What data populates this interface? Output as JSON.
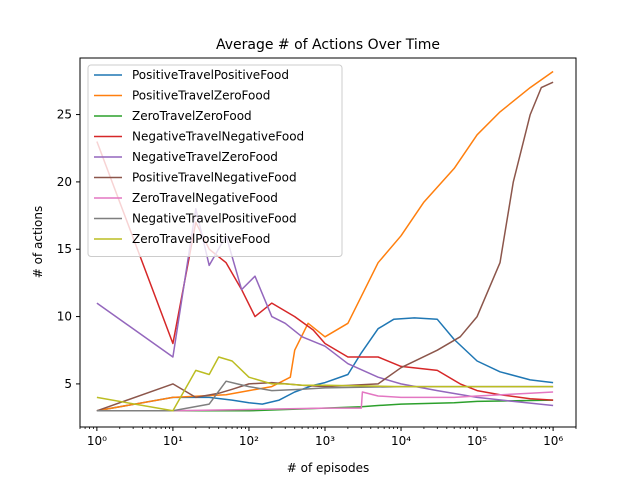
{
  "chart_data": {
    "type": "line",
    "title": "Average # of Actions Over Time",
    "xlabel": "# of episodes",
    "ylabel": "# of actions",
    "xscale": "log",
    "xlim": [
      0.6,
      2000000
    ],
    "ylim": [
      1.8,
      29.2
    ],
    "x_ticks": [
      1,
      10,
      100,
      1000,
      10000,
      100000,
      1000000
    ],
    "x_tick_labels": [
      "10⁰",
      "10¹",
      "10²",
      "10³",
      "10⁴",
      "10⁵",
      "10⁶"
    ],
    "y_ticks": [
      5,
      10,
      15,
      20,
      25
    ],
    "y_tick_labels": [
      "5",
      "10",
      "15",
      "20",
      "25"
    ],
    "grid": false,
    "legend_position": "upper-left",
    "series": [
      {
        "name": "PositiveTravelPositiveFood",
        "color": "#1f77b4",
        "x": [
          1,
          10,
          30,
          60,
          100,
          150,
          250,
          400,
          700,
          1000,
          2000,
          3000,
          5000,
          8000,
          15000,
          30000,
          50000,
          100000,
          200000,
          500000,
          1000000
        ],
        "y": [
          3,
          4,
          4,
          3.8,
          3.6,
          3.5,
          3.8,
          4.4,
          4.9,
          5.1,
          5.7,
          7.3,
          9.1,
          9.8,
          9.9,
          9.8,
          8.3,
          6.7,
          5.9,
          5.3,
          5.1
        ]
      },
      {
        "name": "PositiveTravelZeroFood",
        "color": "#ff7f0e",
        "x": [
          1,
          10,
          50,
          100,
          200,
          350,
          400,
          600,
          1000,
          2000,
          3000,
          5000,
          10000,
          20000,
          50000,
          100000,
          200000,
          500000,
          1000000
        ],
        "y": [
          3,
          4,
          4.2,
          4.5,
          4.8,
          5.5,
          7.5,
          9.5,
          8.5,
          9.5,
          11.5,
          14,
          16,
          18.5,
          21,
          23.5,
          25.2,
          27,
          28.2
        ]
      },
      {
        "name": "ZeroTravelZeroFood",
        "color": "#2ca02c",
        "x": [
          1,
          10,
          100,
          1000,
          3000,
          5000,
          10000,
          50000,
          100000,
          1000000
        ],
        "y": [
          3,
          3,
          3,
          3.2,
          3.3,
          3.4,
          3.5,
          3.6,
          3.7,
          3.8
        ]
      },
      {
        "name": "NegativeTravelNegativeFood",
        "color": "#d62728",
        "x": [
          1,
          10,
          20,
          30,
          50,
          80,
          120,
          200,
          400,
          700,
          1000,
          2000,
          5000,
          10000,
          30000,
          60000,
          100000,
          200000,
          500000,
          1000000
        ],
        "y": [
          23,
          8,
          17,
          15,
          14,
          12,
          10,
          11,
          10,
          9,
          8,
          7,
          7,
          6.3,
          6,
          5,
          4.5,
          4.2,
          3.9,
          3.8
        ]
      },
      {
        "name": "NegativeTravelZeroFood",
        "color": "#9467bd",
        "x": [
          1,
          10,
          20,
          30,
          50,
          80,
          120,
          200,
          300,
          500,
          1000,
          2000,
          5000,
          10000,
          30000,
          100000,
          300000,
          1000000
        ],
        "y": [
          11,
          7,
          18,
          13.8,
          16,
          12,
          13,
          10,
          9.5,
          8.5,
          7.8,
          6.5,
          5.5,
          5,
          4.5,
          4,
          3.7,
          3.4
        ]
      },
      {
        "name": "PositiveTravelNegativeFood",
        "color": "#8c564b",
        "x": [
          1,
          10,
          20,
          40,
          60,
          100,
          200,
          500,
          1000,
          5000,
          10000,
          30000,
          60000,
          100000,
          200000,
          300000,
          500000,
          700000,
          1000000
        ],
        "y": [
          3,
          5,
          4,
          4.3,
          4.6,
          5,
          5.1,
          4.9,
          4.8,
          5,
          6.2,
          7.5,
          8.5,
          10,
          14,
          20,
          25,
          27,
          27.4
        ]
      },
      {
        "name": "ZeroTravelNegativeFood",
        "color": "#e377c2",
        "x": [
          1,
          10,
          100,
          1000,
          3000,
          3100,
          5000,
          10000,
          50000,
          100000,
          500000,
          1000000
        ],
        "y": [
          3,
          3,
          3.1,
          3.2,
          3.2,
          4.4,
          4.1,
          4.0,
          4.0,
          4.1,
          4.3,
          4.4
        ]
      },
      {
        "name": "NegativeTravelPositiveFood",
        "color": "#7f7f7f",
        "x": [
          1,
          10,
          30,
          50,
          70,
          100,
          200,
          500,
          1000,
          10000,
          100000,
          1000000
        ],
        "y": [
          3,
          3,
          3.5,
          5.2,
          5,
          4.8,
          4.5,
          4.6,
          4.7,
          4.8,
          4.8,
          4.8
        ]
      },
      {
        "name": "ZeroTravelPositiveFood",
        "color": "#bcbd22",
        "x": [
          1,
          10,
          20,
          30,
          40,
          60,
          100,
          200,
          300,
          500,
          1000,
          10000,
          100000,
          1000000
        ],
        "y": [
          4,
          3,
          6,
          5.7,
          7,
          6.7,
          5.5,
          5,
          5,
          4.9,
          4.9,
          4.8,
          4.8,
          4.8
        ]
      }
    ]
  }
}
